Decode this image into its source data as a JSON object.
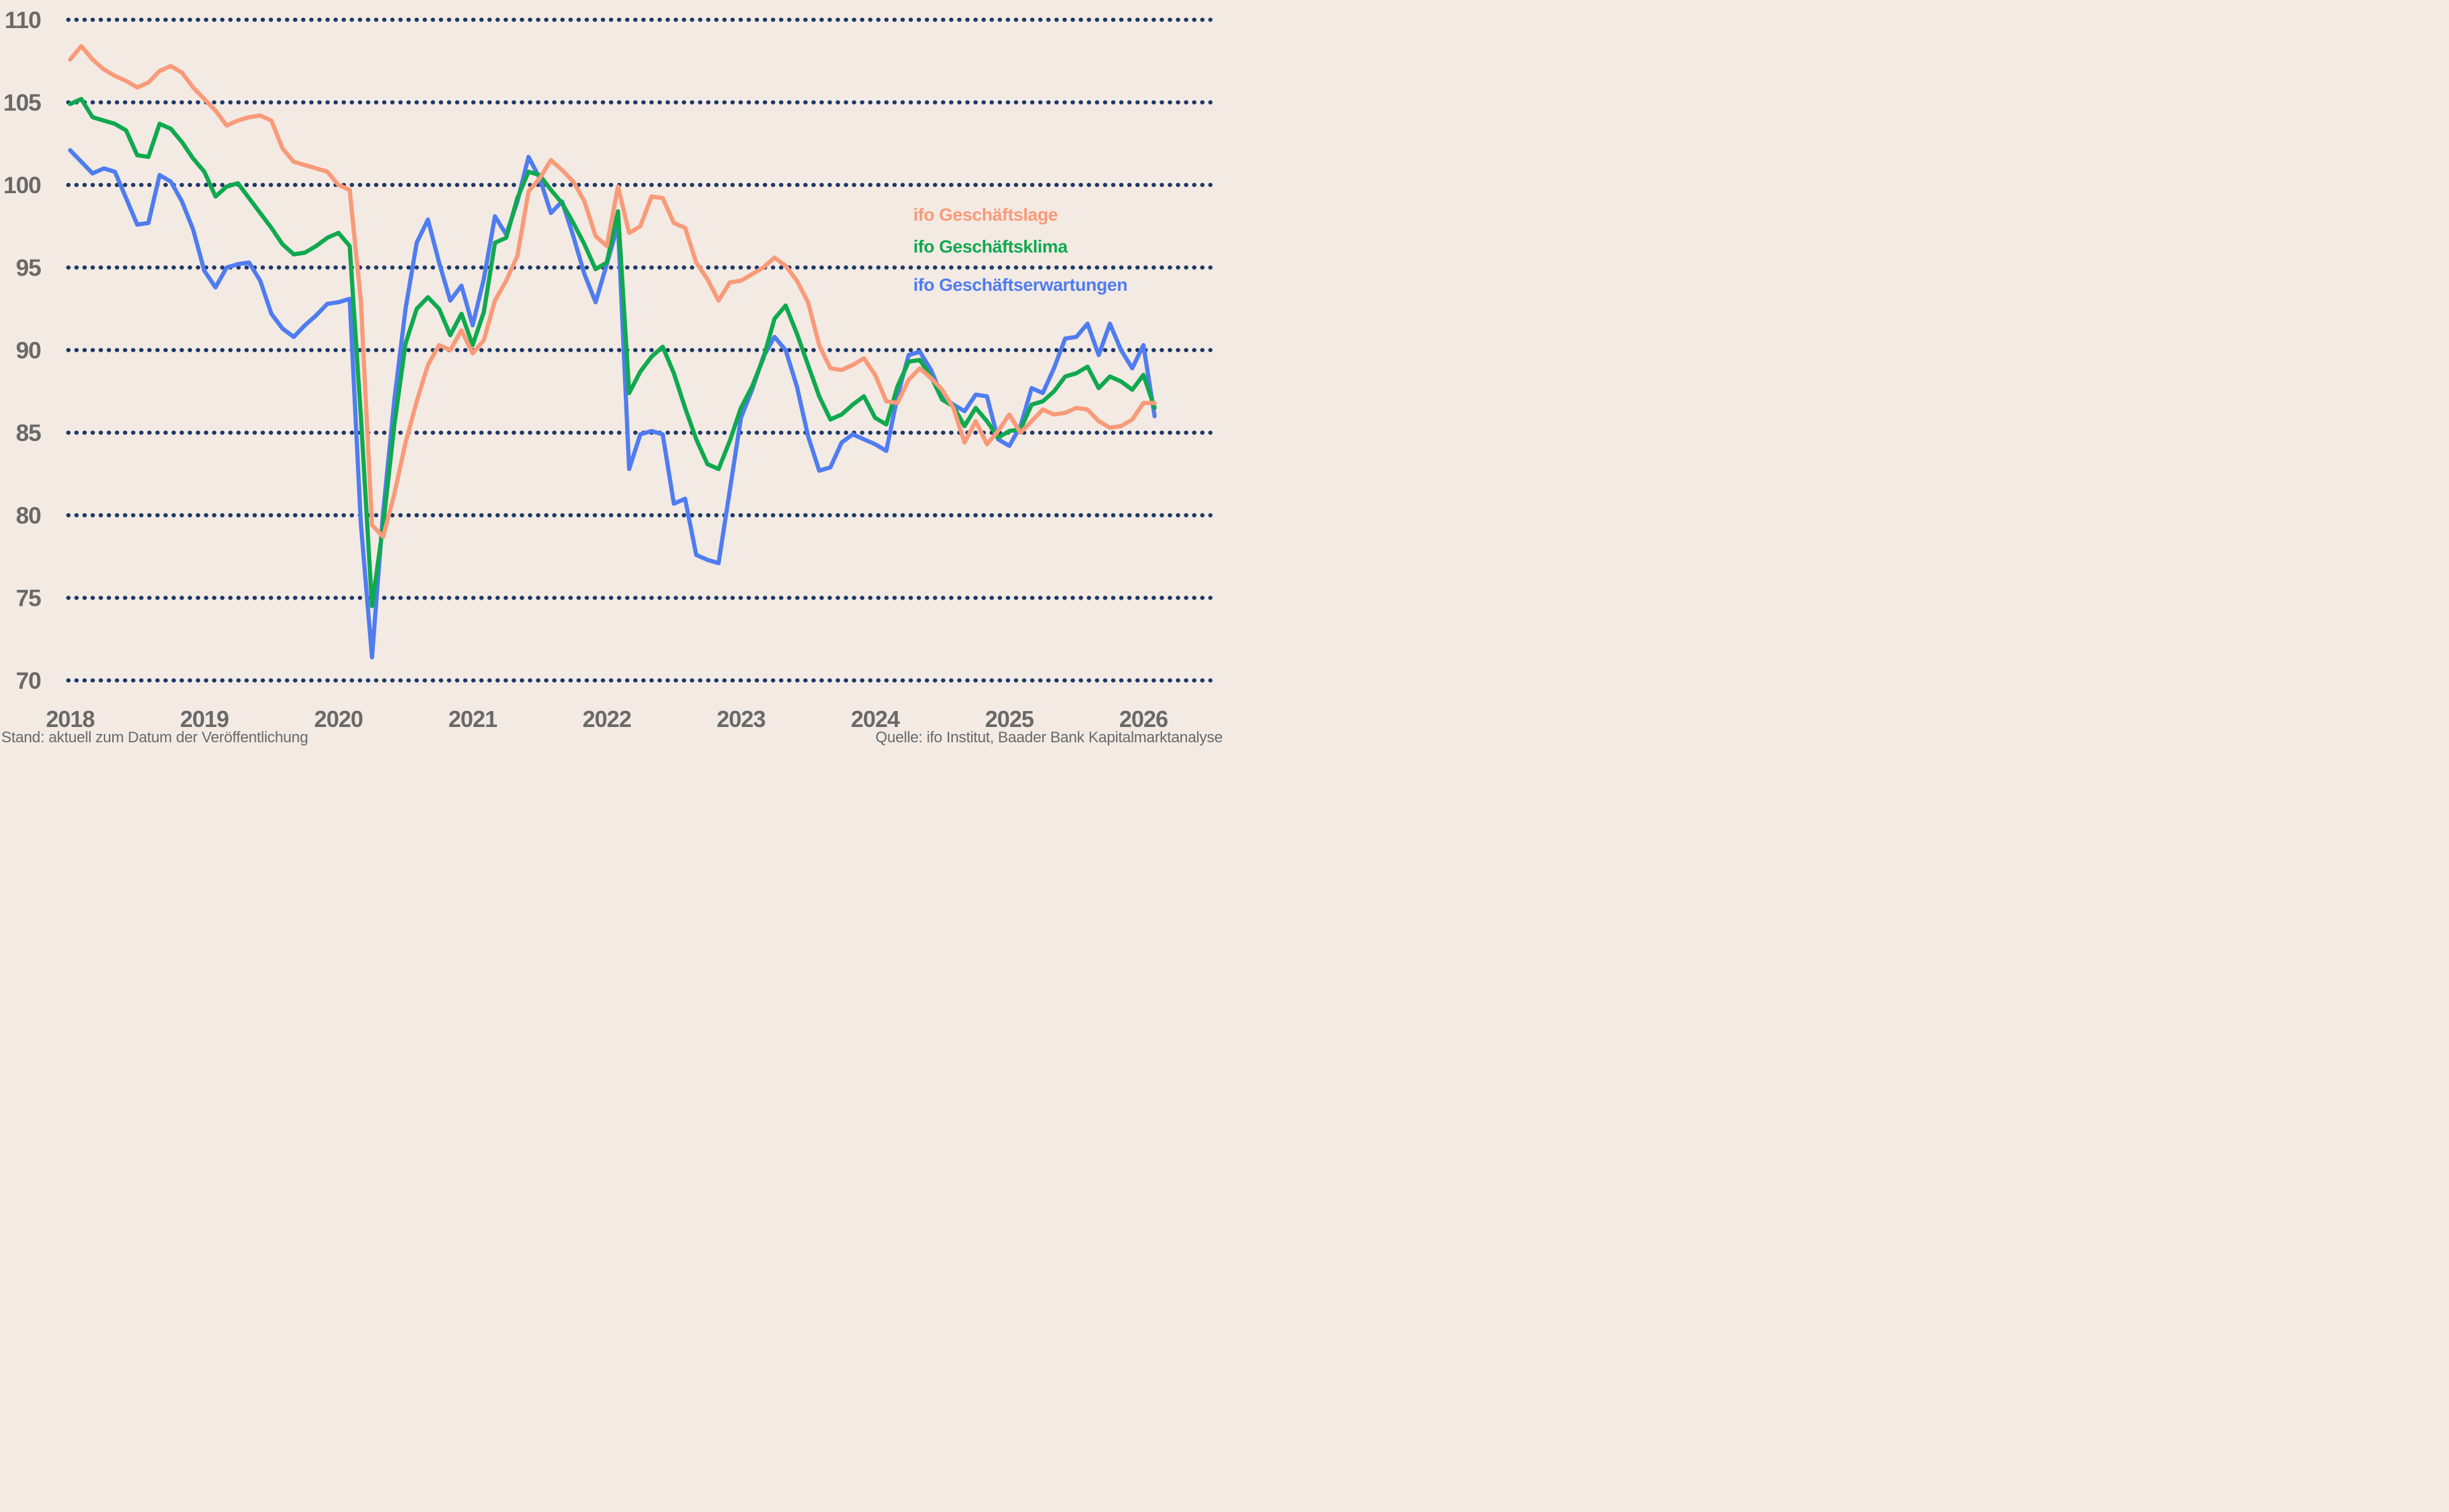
{
  "chart_data": {
    "type": "line",
    "title": "",
    "xlabel": "",
    "ylabel": "",
    "x_start": "2018-01",
    "x_end": "2026-02",
    "x_step": "month",
    "x_tick_labels": [
      "2018",
      "2019",
      "2020",
      "2021",
      "2022",
      "2023",
      "2024",
      "2025",
      "2026"
    ],
    "y_ticks": [
      110,
      105,
      100,
      95,
      90,
      85,
      80,
      75,
      70
    ],
    "ylim": [
      68.7,
      110.6
    ],
    "grid": "horizontal-dotted",
    "legend_position": "right-upper-middle",
    "months": [
      "2018-01",
      "2018-02",
      "2018-03",
      "2018-04",
      "2018-05",
      "2018-06",
      "2018-07",
      "2018-08",
      "2018-09",
      "2018-10",
      "2018-11",
      "2018-12",
      "2019-01",
      "2019-02",
      "2019-03",
      "2019-04",
      "2019-05",
      "2019-06",
      "2019-07",
      "2019-08",
      "2019-09",
      "2019-10",
      "2019-11",
      "2019-12",
      "2020-01",
      "2020-02",
      "2020-03",
      "2020-04",
      "2020-05",
      "2020-06",
      "2020-07",
      "2020-08",
      "2020-09",
      "2020-10",
      "2020-11",
      "2020-12",
      "2021-01",
      "2021-02",
      "2021-03",
      "2021-04",
      "2021-05",
      "2021-06",
      "2021-07",
      "2021-08",
      "2021-09",
      "2021-10",
      "2021-11",
      "2021-12",
      "2022-01",
      "2022-02",
      "2022-03",
      "2022-04",
      "2022-05",
      "2022-06",
      "2022-07",
      "2022-08",
      "2022-09",
      "2022-10",
      "2022-11",
      "2022-12",
      "2023-01",
      "2023-02",
      "2023-03",
      "2023-04",
      "2023-05",
      "2023-06",
      "2023-07",
      "2023-08",
      "2023-09",
      "2023-10",
      "2023-11",
      "2023-12",
      "2024-01",
      "2024-02",
      "2024-03",
      "2024-04",
      "2024-05",
      "2024-06",
      "2024-07",
      "2024-08",
      "2024-09",
      "2024-10",
      "2024-11",
      "2024-12",
      "2025-01",
      "2025-02",
      "2025-03",
      "2025-04",
      "2025-05",
      "2025-06",
      "2025-07",
      "2025-08",
      "2025-09",
      "2025-10",
      "2025-11",
      "2025-12",
      "2026-01",
      "2026-02"
    ],
    "series": [
      {
        "name": "ifo Geschäftslage",
        "color": "#f99a79",
        "values": [
          107.6,
          108.4,
          107.6,
          107.0,
          106.6,
          106.3,
          105.9,
          106.2,
          106.9,
          107.2,
          106.8,
          105.9,
          105.2,
          104.5,
          103.6,
          103.9,
          104.1,
          104.2,
          103.9,
          102.2,
          101.4,
          101.2,
          101.0,
          100.8,
          100.0,
          99.7,
          93.0,
          79.4,
          78.7,
          81.3,
          84.4,
          86.9,
          89.1,
          90.3,
          90.0,
          91.2,
          89.8,
          90.6,
          93.0,
          94.2,
          95.7,
          99.6,
          100.4,
          101.5,
          100.9,
          100.2,
          99.0,
          96.9,
          96.3,
          99.9,
          97.1,
          97.5,
          99.3,
          99.2,
          97.7,
          97.4,
          95.3,
          94.3,
          93.0,
          94.1,
          94.2,
          94.6,
          95.0,
          95.6,
          95.1,
          94.2,
          92.9,
          90.3,
          88.9,
          88.8,
          89.1,
          89.5,
          88.5,
          86.9,
          86.8,
          88.2,
          88.9,
          88.3,
          87.6,
          86.5,
          84.4,
          85.7,
          84.3,
          85.1,
          86.1,
          85.0,
          85.7,
          86.4,
          86.1,
          86.2,
          86.5,
          86.4,
          85.7,
          85.3,
          85.4,
          85.8,
          86.8,
          86.8
        ]
      },
      {
        "name": "ifo Geschäftsklima",
        "color": "#0fa94f",
        "values": [
          104.9,
          105.2,
          104.1,
          103.9,
          103.7,
          103.3,
          101.8,
          101.7,
          103.7,
          103.4,
          102.6,
          101.6,
          100.8,
          99.3,
          99.9,
          100.1,
          99.2,
          98.3,
          97.4,
          96.4,
          95.8,
          95.9,
          96.3,
          96.8,
          97.1,
          96.3,
          86.0,
          74.5,
          79.4,
          85.5,
          90.4,
          92.5,
          93.2,
          92.5,
          90.9,
          92.2,
          90.3,
          92.3,
          96.5,
          96.8,
          99.2,
          100.8,
          100.6,
          99.7,
          98.9,
          97.7,
          96.4,
          94.9,
          95.3,
          98.4,
          87.4,
          88.7,
          89.6,
          90.2,
          88.6,
          86.5,
          84.6,
          83.1,
          82.8,
          84.5,
          86.5,
          87.8,
          89.5,
          91.9,
          92.7,
          91.0,
          89.1,
          87.2,
          85.8,
          86.1,
          86.7,
          87.2,
          85.9,
          85.5,
          87.8,
          89.3,
          89.4,
          88.4,
          87.0,
          86.6,
          85.4,
          86.5,
          85.7,
          84.7,
          85.1,
          85.2,
          86.7,
          86.9,
          87.5,
          88.4,
          88.6,
          89.0,
          87.7,
          88.4,
          88.1,
          87.6,
          88.5,
          86.5
        ]
      },
      {
        "name": "ifo Geschäftserwartungen",
        "color": "#4f7cf1",
        "values": [
          102.1,
          101.4,
          100.7,
          101.0,
          100.8,
          99.2,
          97.6,
          97.7,
          100.6,
          100.2,
          99.0,
          97.3,
          94.8,
          93.8,
          95.0,
          95.2,
          95.3,
          94.2,
          92.2,
          91.3,
          90.8,
          91.5,
          92.1,
          92.8,
          92.9,
          93.1,
          79.5,
          71.4,
          80.2,
          87.0,
          92.5,
          96.5,
          97.9,
          95.3,
          93.0,
          93.9,
          91.5,
          94.3,
          98.1,
          97.0,
          99.0,
          101.7,
          100.4,
          98.3,
          99.0,
          96.9,
          94.6,
          92.9,
          95.2,
          97.6,
          82.8,
          84.9,
          85.1,
          84.9,
          80.7,
          81.0,
          77.6,
          77.3,
          77.1,
          81.5,
          85.9,
          87.6,
          89.6,
          90.8,
          90.0,
          87.8,
          84.8,
          82.7,
          82.9,
          84.4,
          84.9,
          84.6,
          84.3,
          83.9,
          87.2,
          89.7,
          89.9,
          88.8,
          87.2,
          86.7,
          86.3,
          87.3,
          87.2,
          84.6,
          84.2,
          85.4,
          87.7,
          87.4,
          88.9,
          90.7,
          90.8,
          91.6,
          89.7,
          91.6,
          90.0,
          88.9,
          90.3,
          86.0
        ]
      }
    ]
  },
  "annotations": {
    "stand": "Stand: aktuell zum Datum der Veröffentlichung",
    "quelle": "Quelle: ifo Institut, Baader Bank Kapitalmarktanalyse"
  },
  "colors": {
    "background": "#f3eae3",
    "grid_dots": "#1e3868",
    "axis_text": "#696969",
    "lage": "#f99a79",
    "klima": "#0fa94f",
    "erwartungen": "#4f7cf1"
  }
}
